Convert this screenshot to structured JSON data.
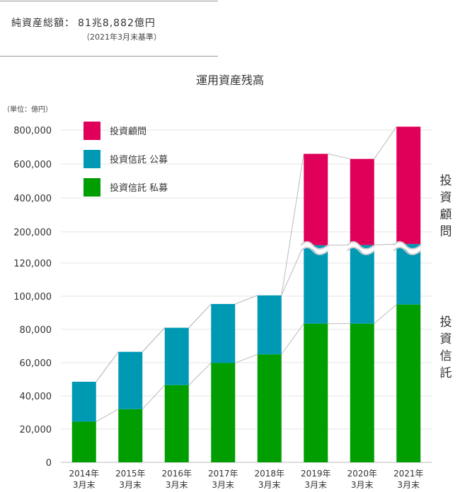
{
  "header": {
    "total_label": "純資産総額：",
    "total_value": "81兆8,882億円",
    "as_of": "（2021年3月末基準）"
  },
  "colors": {
    "advisory": "#e0005a",
    "public": "#0099b4",
    "private": "#009e00"
  },
  "side_labels": {
    "advisory": [
      "投",
      "資",
      "顧",
      "問"
    ],
    "trust": [
      "投",
      "資",
      "信",
      "託"
    ]
  },
  "chart_data": {
    "type": "bar",
    "title": "運用資産残高",
    "unit": "（単位：億円）",
    "stacked": true,
    "broken_axis": true,
    "lower_ticks": [
      "0",
      "20,000",
      "40,000",
      "60,000",
      "80,000",
      "100,000",
      "120,000"
    ],
    "upper_ticks": [
      "200,000",
      "400,000",
      "600,000",
      "800,000"
    ],
    "ylim_lower": [
      0,
      120000
    ],
    "ylim_upper": [
      200000,
      800000
    ],
    "categories": [
      [
        "2014年",
        "3月末"
      ],
      [
        "2015年",
        "3月末"
      ],
      [
        "2016年",
        "3月末"
      ],
      [
        "2017年",
        "3月末"
      ],
      [
        "2018年",
        "3月末"
      ],
      [
        "2019年",
        "3月末"
      ],
      [
        "2020年",
        "3月末"
      ],
      [
        "2021年",
        "3月末"
      ]
    ],
    "series": [
      {
        "name": "投資信託  私募",
        "color": "#009e00",
        "values": [
          24500,
          32000,
          46500,
          59800,
          65000,
          83500,
          83500,
          95000
        ]
      },
      {
        "name": "投資信託  公募",
        "color": "#0099b4",
        "values": [
          24000,
          34500,
          34500,
          35500,
          35500,
          37800,
          38800,
          33200
        ]
      },
      {
        "name": "投資顧問",
        "color": "#e0005a",
        "cumulative_top": [
          null,
          null,
          null,
          null,
          null,
          660000,
          630000,
          820000
        ]
      }
    ],
    "legend": [
      "投資顧問",
      "投資信託  公募",
      "投資信託  私募"
    ],
    "legend_position": "top-left"
  }
}
